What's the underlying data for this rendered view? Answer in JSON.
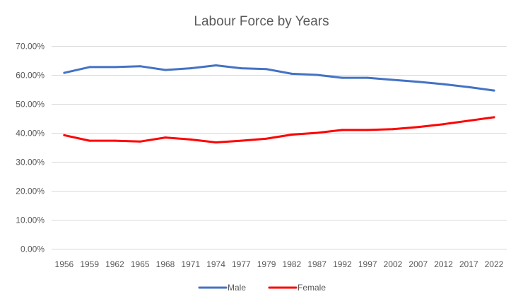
{
  "chart_data": {
    "type": "line",
    "title": "Labour Force by Years",
    "xlabel": "",
    "ylabel": "",
    "categories": [
      "1956",
      "1959",
      "1962",
      "1965",
      "1968",
      "1971",
      "1974",
      "1977",
      "1979",
      "1982",
      "1987",
      "1992",
      "1997",
      "2002",
      "2007",
      "2012",
      "2017",
      "2022"
    ],
    "y_ticks": [
      "0.00%",
      "10.00%",
      "20.00%",
      "30.00%",
      "40.00%",
      "50.00%",
      "60.00%",
      "70.00%"
    ],
    "ylim": [
      0,
      70
    ],
    "grid": true,
    "legend_position": "bottom",
    "series": [
      {
        "name": "Male",
        "color": "#4472C4",
        "values": [
          60.7,
          62.7,
          62.7,
          63.0,
          61.7,
          62.3,
          63.3,
          62.3,
          62.0,
          60.4,
          60.0,
          59.0,
          59.0,
          58.3,
          57.6,
          56.8,
          55.8,
          54.6
        ]
      },
      {
        "name": "Female",
        "color": "#FF0000",
        "values": [
          39.2,
          37.3,
          37.3,
          37.0,
          38.4,
          37.7,
          36.7,
          37.3,
          38.0,
          39.4,
          40.0,
          41.0,
          41.0,
          41.3,
          42.0,
          43.0,
          44.2,
          45.4
        ]
      }
    ]
  }
}
